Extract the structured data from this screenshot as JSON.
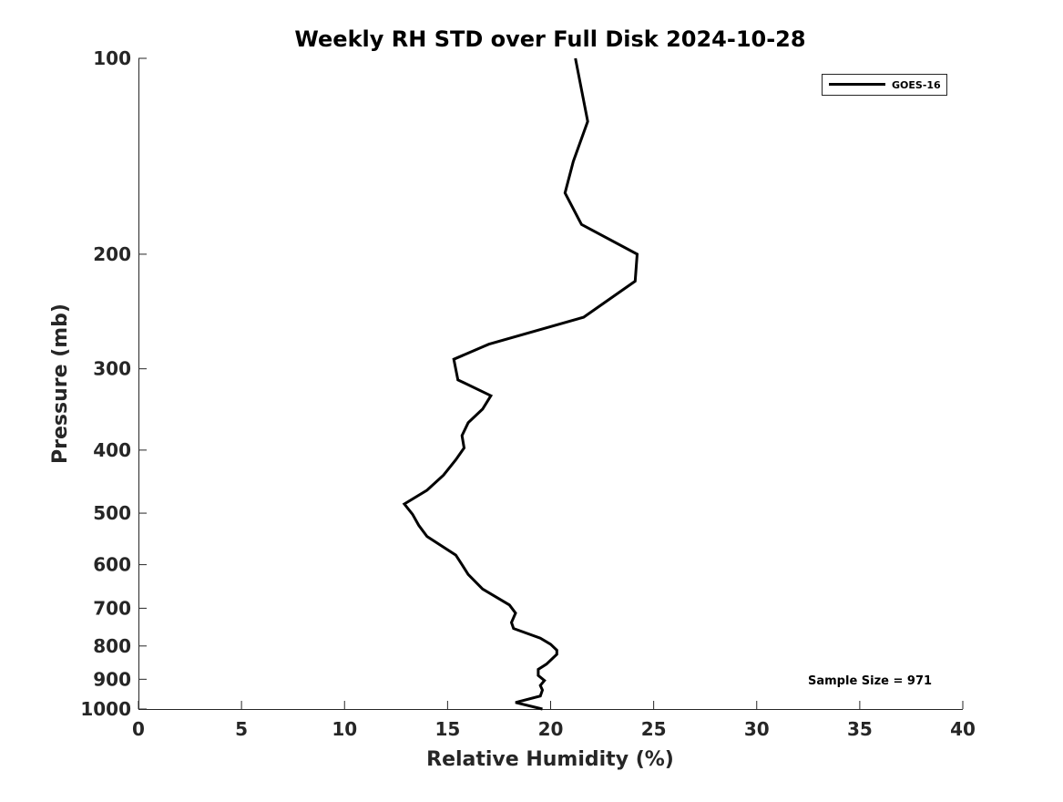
{
  "chart_data": {
    "type": "line",
    "title": "Weekly RH STD over Full Disk 2024-10-28",
    "xlabel": "Relative Humidity (%)",
    "ylabel": "Pressure (mb)",
    "xlim": [
      0,
      40
    ],
    "ylim": [
      100,
      1000
    ],
    "yscale": "log",
    "y_reversed": true,
    "grid": false,
    "x_ticks": [
      0,
      5,
      10,
      15,
      20,
      25,
      30,
      35,
      40
    ],
    "x_tick_labels": [
      "0",
      "5",
      "10",
      "15",
      "20",
      "25",
      "30",
      "35",
      "40"
    ],
    "y_ticks": [
      100,
      200,
      300,
      400,
      500,
      600,
      700,
      800,
      900,
      1000
    ],
    "y_tick_labels": [
      "100",
      "200",
      "300",
      "400",
      "500",
      "600",
      "700",
      "800",
      "900",
      "1000"
    ],
    "legend": {
      "position": "top-right",
      "entries": [
        "GOES-16"
      ]
    },
    "annotation": "Sample Size = 971",
    "series": [
      {
        "name": "GOES-16",
        "color": "#000000",
        "x": [
          21.2,
          21.8,
          21.1,
          20.7,
          21.5,
          24.2,
          24.1,
          21.6,
          17.0,
          15.3,
          15.5,
          17.1,
          16.7,
          16.0,
          15.7,
          15.8,
          15.4,
          14.8,
          14.0,
          12.9,
          13.3,
          13.6,
          14.0,
          15.4,
          15.7,
          16.0,
          16.7,
          18.0,
          18.3,
          18.1,
          18.2,
          19.5,
          20.0,
          20.3,
          20.3,
          19.8,
          19.4,
          19.4,
          19.7,
          19.5,
          19.6,
          19.5,
          18.3,
          19.6
        ],
        "y": [
          100,
          125,
          144,
          161,
          180,
          200,
          220,
          250,
          275,
          290,
          312,
          330,
          346,
          363,
          380,
          397,
          414,
          437,
          461,
          484,
          502,
          522,
          543,
          580,
          600,
          621,
          654,
          692,
          712,
          736,
          752,
          778,
          795,
          812,
          824,
          853,
          869,
          888,
          904,
          920,
          935,
          955,
          977,
          1000
        ]
      }
    ]
  }
}
